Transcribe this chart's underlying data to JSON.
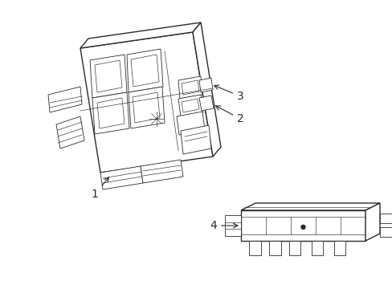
{
  "bg_color": "#ffffff",
  "line_color": "#2a2a2a",
  "label_color": "#000000",
  "figsize": [
    4.89,
    3.6
  ],
  "dpi": 100,
  "lw_main": 1.0,
  "lw_detail": 0.6,
  "lw_thin": 0.45
}
